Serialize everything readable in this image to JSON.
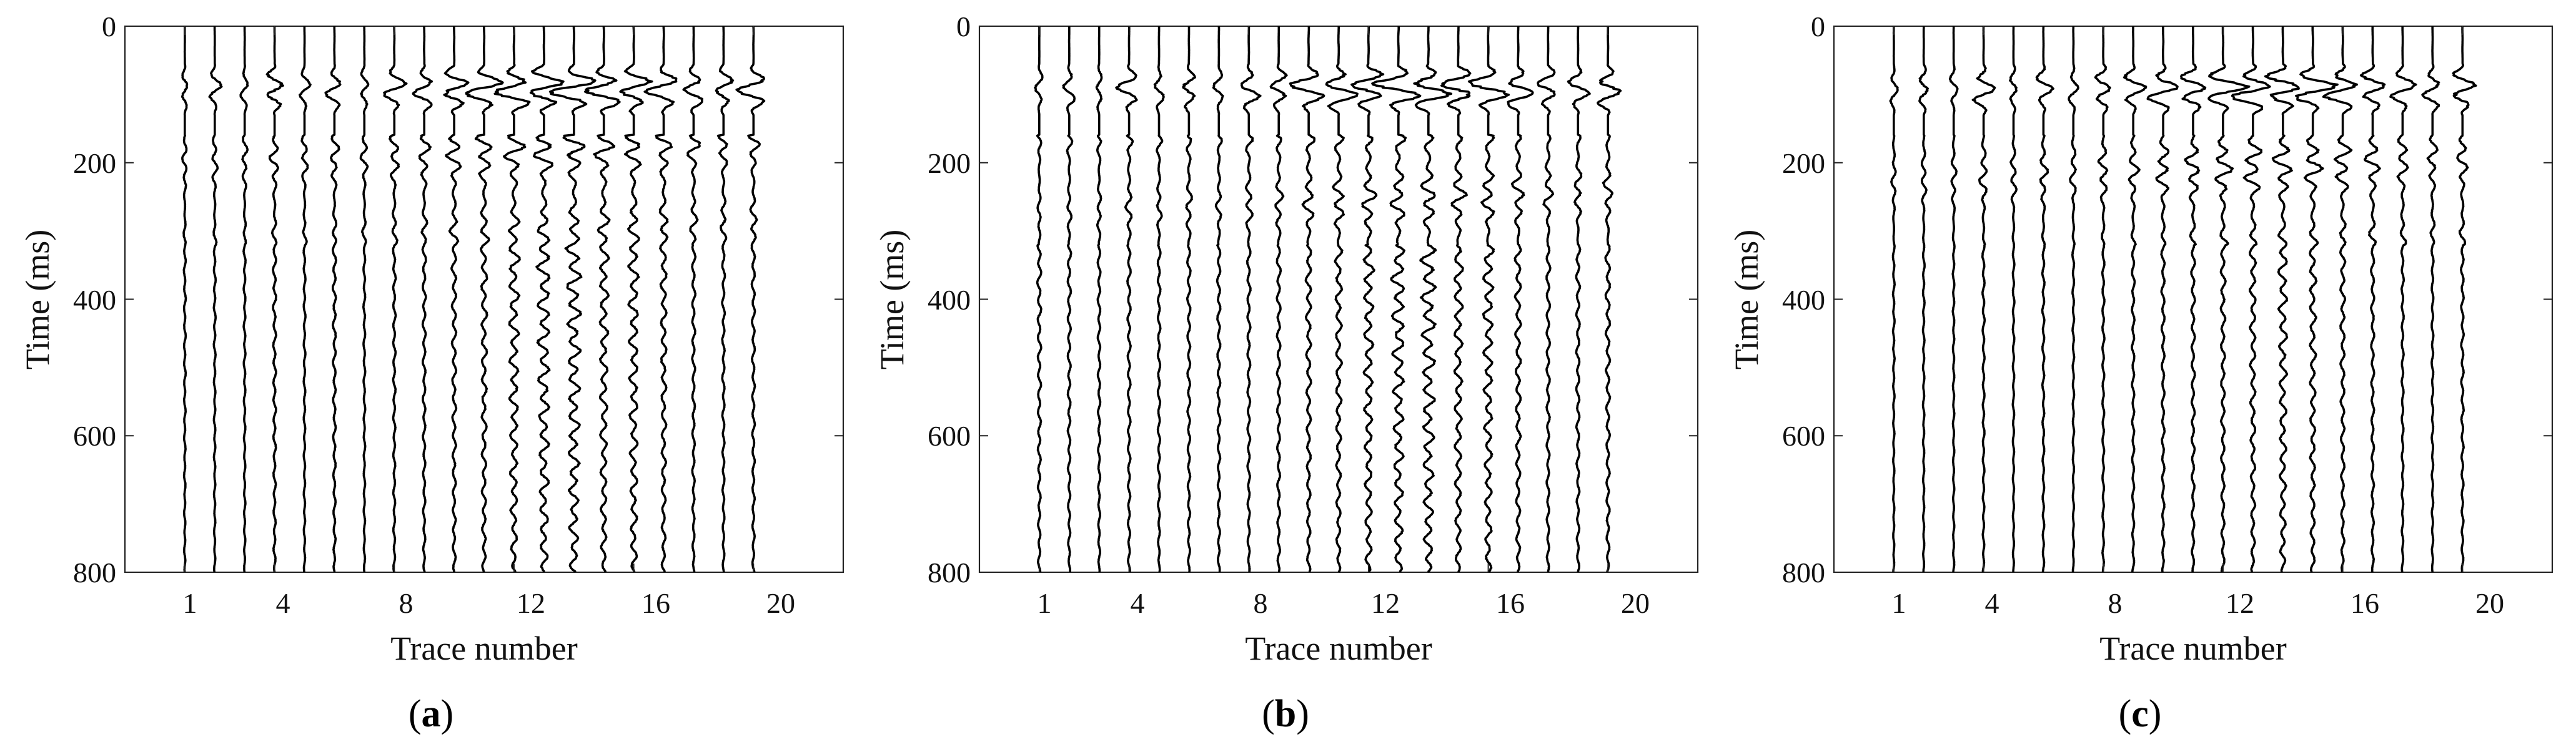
{
  "figure": {
    "panels": [
      {
        "label_open": "(",
        "label_letter": "a",
        "label_close": ")"
      },
      {
        "label_open": "(",
        "label_letter": "b",
        "label_close": ")"
      },
      {
        "label_open": "(",
        "label_letter": "c",
        "label_close": ")"
      }
    ]
  },
  "chart_data": [
    {
      "type": "line",
      "panel": "a",
      "title": "",
      "xlabel": "Trace number",
      "ylabel": "Time (ms)",
      "xlim": [
        -1,
        23
      ],
      "ylim": [
        800,
        0
      ],
      "y_reversed": true,
      "xticks": [
        1,
        4,
        8,
        12,
        16,
        20
      ],
      "yticks": [
        0,
        200,
        400,
        600,
        800
      ],
      "grid": false,
      "trace_color": "#000000",
      "traces": [
        {
          "trace": 1,
          "amp": 0.25,
          "burst": 0.35,
          "coda": 0.05
        },
        {
          "trace": 2,
          "amp": 0.3,
          "burst": 0.55,
          "coda": 0.05
        },
        {
          "trace": 3,
          "amp": 0.3,
          "burst": 0.35,
          "coda": 0.05
        },
        {
          "trace": 4,
          "amp": 0.45,
          "burst": 1.0,
          "coda": 0.1
        },
        {
          "trace": 5,
          "amp": 0.35,
          "burst": 0.45,
          "coda": 0.05
        },
        {
          "trace": 6,
          "amp": 0.45,
          "burst": 0.75,
          "coda": 0.1
        },
        {
          "trace": 7,
          "amp": 0.35,
          "burst": 0.45,
          "coda": 0.05
        },
        {
          "trace": 8,
          "amp": 0.5,
          "burst": 0.95,
          "coda": 0.08
        },
        {
          "trace": 9,
          "amp": 0.55,
          "burst": 1.0,
          "coda": 0.1
        },
        {
          "trace": 10,
          "amp": 0.75,
          "burst": 1.5,
          "coda": 0.15
        },
        {
          "trace": 11,
          "amp": 0.8,
          "burst": 1.6,
          "coda": 0.2
        },
        {
          "trace": 12,
          "amp": 0.95,
          "burst": 1.9,
          "coda": 0.35
        },
        {
          "trace": 13,
          "amp": 1.0,
          "burst": 2.0,
          "coda": 0.45
        },
        {
          "trace": 14,
          "amp": 1.0,
          "burst": 2.0,
          "coda": 0.5
        },
        {
          "trace": 15,
          "amp": 0.95,
          "burst": 1.9,
          "coda": 0.3
        },
        {
          "trace": 16,
          "amp": 0.9,
          "burst": 1.7,
          "coda": 0.35
        },
        {
          "trace": 17,
          "amp": 0.75,
          "burst": 1.4,
          "coda": 0.2
        },
        {
          "trace": 18,
          "amp": 0.6,
          "burst": 1.1,
          "coda": 0.1
        },
        {
          "trace": 19,
          "amp": 0.5,
          "burst": 0.9,
          "coda": 0.08
        },
        {
          "trace": 20,
          "amp": 0.55,
          "burst": 1.3,
          "coda": 0.1
        }
      ]
    },
    {
      "type": "line",
      "panel": "b",
      "title": "",
      "xlabel": "Trace number",
      "ylabel": "Time (ms)",
      "xlim": [
        -1,
        23
      ],
      "ylim": [
        800,
        0
      ],
      "y_reversed": true,
      "xticks": [
        1,
        4,
        8,
        12,
        16,
        20
      ],
      "yticks": [
        0,
        200,
        400,
        600,
        800
      ],
      "grid": false,
      "trace_color": "#000000",
      "traces": [
        {
          "trace": 1,
          "amp": 0.25,
          "burst": 0.35,
          "coda": 0.12
        },
        {
          "trace": 2,
          "amp": 0.3,
          "burst": 0.55,
          "coda": 0.1
        },
        {
          "trace": 3,
          "amp": 0.3,
          "burst": 0.35,
          "coda": 0.08
        },
        {
          "trace": 4,
          "amp": 0.45,
          "burst": 1.0,
          "coda": 0.1
        },
        {
          "trace": 5,
          "amp": 0.35,
          "burst": 0.45,
          "coda": 0.08
        },
        {
          "trace": 6,
          "amp": 0.45,
          "burst": 0.75,
          "coda": 0.1
        },
        {
          "trace": 7,
          "amp": 0.35,
          "burst": 0.45,
          "coda": 0.1
        },
        {
          "trace": 8,
          "amp": 0.5,
          "burst": 0.95,
          "coda": 0.1
        },
        {
          "trace": 9,
          "amp": 0.55,
          "burst": 1.0,
          "coda": 0.12
        },
        {
          "trace": 10,
          "amp": 0.75,
          "burst": 1.5,
          "coda": 0.18
        },
        {
          "trace": 11,
          "amp": 0.8,
          "burst": 1.6,
          "coda": 0.22
        },
        {
          "trace": 12,
          "amp": 0.95,
          "burst": 1.9,
          "coda": 0.35
        },
        {
          "trace": 13,
          "amp": 1.0,
          "burst": 2.0,
          "coda": 0.45
        },
        {
          "trace": 14,
          "amp": 1.0,
          "burst": 2.0,
          "coda": 0.5
        },
        {
          "trace": 15,
          "amp": 0.95,
          "burst": 1.9,
          "coda": 0.3
        },
        {
          "trace": 16,
          "amp": 0.9,
          "burst": 1.7,
          "coda": 0.35
        },
        {
          "trace": 17,
          "amp": 0.75,
          "burst": 1.4,
          "coda": 0.2
        },
        {
          "trace": 18,
          "amp": 0.6,
          "burst": 1.1,
          "coda": 0.12
        },
        {
          "trace": 19,
          "amp": 0.5,
          "burst": 0.9,
          "coda": 0.12
        },
        {
          "trace": 20,
          "amp": 0.55,
          "burst": 1.3,
          "coda": 0.15
        }
      ]
    },
    {
      "type": "line",
      "panel": "c",
      "title": "",
      "xlabel": "Trace number",
      "ylabel": "Time (ms)",
      "xlim": [
        -1,
        23
      ],
      "ylim": [
        800,
        0
      ],
      "y_reversed": true,
      "xticks": [
        1,
        4,
        8,
        12,
        16,
        20
      ],
      "yticks": [
        0,
        200,
        400,
        600,
        800
      ],
      "grid": false,
      "trace_color": "#000000",
      "traces": [
        {
          "trace": 1,
          "amp": 0.25,
          "burst": 0.35,
          "coda": 0.04
        },
        {
          "trace": 2,
          "amp": 0.3,
          "burst": 0.55,
          "coda": 0.04
        },
        {
          "trace": 3,
          "amp": 0.3,
          "burst": 0.35,
          "coda": 0.04
        },
        {
          "trace": 4,
          "amp": 0.45,
          "burst": 1.0,
          "coda": 0.06
        },
        {
          "trace": 5,
          "amp": 0.35,
          "burst": 0.45,
          "coda": 0.04
        },
        {
          "trace": 6,
          "amp": 0.45,
          "burst": 0.75,
          "coda": 0.06
        },
        {
          "trace": 7,
          "amp": 0.35,
          "burst": 0.45,
          "coda": 0.04
        },
        {
          "trace": 8,
          "amp": 0.5,
          "burst": 0.95,
          "coda": 0.06
        },
        {
          "trace": 9,
          "amp": 0.55,
          "burst": 1.0,
          "coda": 0.08
        },
        {
          "trace": 10,
          "amp": 0.75,
          "burst": 1.5,
          "coda": 0.1
        },
        {
          "trace": 11,
          "amp": 0.8,
          "burst": 1.6,
          "coda": 0.12
        },
        {
          "trace": 12,
          "amp": 0.95,
          "burst": 1.9,
          "coda": 0.15
        },
        {
          "trace": 13,
          "amp": 1.0,
          "burst": 2.0,
          "coda": 0.2
        },
        {
          "trace": 14,
          "amp": 1.0,
          "burst": 2.0,
          "coda": 0.3
        },
        {
          "trace": 15,
          "amp": 0.95,
          "burst": 1.9,
          "coda": 0.22
        },
        {
          "trace": 16,
          "amp": 0.9,
          "burst": 1.7,
          "coda": 0.15
        },
        {
          "trace": 17,
          "amp": 0.75,
          "burst": 1.4,
          "coda": 0.1
        },
        {
          "trace": 18,
          "amp": 0.6,
          "burst": 1.1,
          "coda": 0.06
        },
        {
          "trace": 19,
          "amp": 0.5,
          "burst": 0.9,
          "coda": 0.05
        },
        {
          "trace": 20,
          "amp": 0.55,
          "burst": 1.3,
          "coda": 0.08
        }
      ]
    }
  ]
}
